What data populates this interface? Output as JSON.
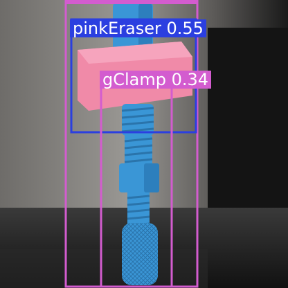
{
  "image": {
    "description_only": false
  },
  "detections": [
    {
      "class_name": "gClamp",
      "score": "0.34",
      "display": "gClamp 0.34",
      "color": "#d35ccf"
    },
    {
      "class_name": "pinkEraser",
      "score": "0.55",
      "display": "pinkEraser 0.55",
      "color": "#2b3fe0"
    },
    {
      "class_name": "gClamp",
      "score": "",
      "display": "gClamp",
      "color": "#d35ccf"
    }
  ],
  "colors": {
    "clamp_blue": "#3a96d6",
    "eraser_pink": "#f08aa8",
    "background_gray": "#8a8a88",
    "table_dark": "#151515"
  }
}
